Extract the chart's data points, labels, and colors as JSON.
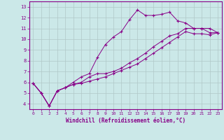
{
  "xlabel": "Windchill (Refroidissement éolien,°C)",
  "xlim": [
    -0.5,
    23.5
  ],
  "ylim": [
    3.5,
    13.5
  ],
  "xticks": [
    0,
    1,
    2,
    3,
    4,
    5,
    6,
    7,
    8,
    9,
    10,
    11,
    12,
    13,
    14,
    15,
    16,
    17,
    18,
    19,
    20,
    21,
    22,
    23
  ],
  "yticks": [
    4,
    5,
    6,
    7,
    8,
    9,
    10,
    11,
    12,
    13
  ],
  "background_color": "#cbe8e8",
  "line_color": "#880088",
  "grid_color": "#b0c8c8",
  "line1_x": [
    0,
    1,
    2,
    3,
    4,
    5,
    6,
    7,
    8,
    9,
    10,
    11,
    12,
    13,
    14,
    15,
    16,
    17,
    18,
    19,
    20,
    21,
    22,
    23
  ],
  "line1_y": [
    5.9,
    5.0,
    3.8,
    5.2,
    5.5,
    6.0,
    6.5,
    6.8,
    8.3,
    9.5,
    10.2,
    10.7,
    11.8,
    12.7,
    12.2,
    12.2,
    12.3,
    12.5,
    11.7,
    11.5,
    11.0,
    11.0,
    10.6,
    10.6
  ],
  "line2_x": [
    0,
    1,
    2,
    3,
    4,
    5,
    6,
    7,
    8,
    9,
    10,
    11,
    12,
    13,
    14,
    15,
    16,
    17,
    18,
    19,
    20,
    21,
    22,
    23
  ],
  "line2_y": [
    5.9,
    5.0,
    3.8,
    5.2,
    5.5,
    5.8,
    6.0,
    6.5,
    6.8,
    6.8,
    7.0,
    7.3,
    7.8,
    8.2,
    8.7,
    9.3,
    9.8,
    10.3,
    10.5,
    11.0,
    11.0,
    11.0,
    11.0,
    10.6
  ],
  "line3_x": [
    0,
    1,
    2,
    3,
    4,
    5,
    6,
    7,
    8,
    9,
    10,
    11,
    12,
    13,
    14,
    15,
    16,
    17,
    18,
    19,
    20,
    21,
    22,
    23
  ],
  "line3_y": [
    5.9,
    5.0,
    3.8,
    5.2,
    5.5,
    5.8,
    5.9,
    6.1,
    6.3,
    6.5,
    6.8,
    7.1,
    7.4,
    7.7,
    8.2,
    8.7,
    9.2,
    9.7,
    10.2,
    10.7,
    10.5,
    10.5,
    10.4,
    10.6
  ]
}
